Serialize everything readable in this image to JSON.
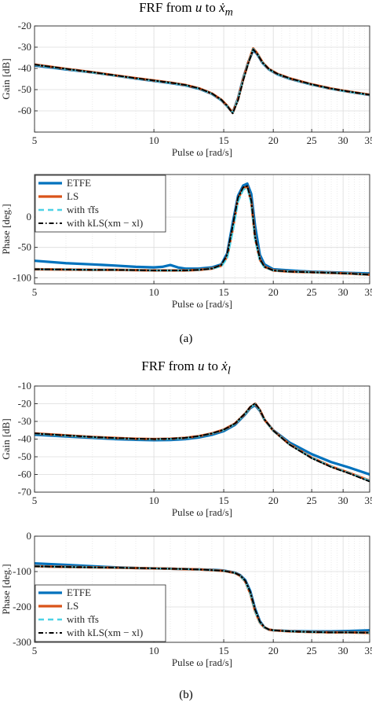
{
  "figure": {
    "caption_a": "(a)",
    "caption_b": "(b)"
  },
  "colors": {
    "ETFE": "#0072bd",
    "LS": "#d95319",
    "with_tau": "#4dd2e6",
    "with_kls": "#000000",
    "grid": "#dcdcdc",
    "axis": "#262626"
  },
  "chart_data": [
    {
      "id": "a-gain",
      "type": "line",
      "title": "FRF from u to ẋm",
      "xlabel": "Pulse ω [rad/s]",
      "ylabel": "Gain [dB]",
      "xscale": "log",
      "xlim": [
        5,
        35
      ],
      "ylim": [
        -70,
        -20
      ],
      "xticks": [
        5,
        10,
        15,
        20,
        25,
        30,
        35
      ],
      "yticks": [
        -20,
        -30,
        -40,
        -50,
        -60,
        -70
      ],
      "ytick_labels": [
        "-20",
        "-30",
        "-40",
        "-50",
        "-60",
        ""
      ],
      "grid": true,
      "series": [
        {
          "name": "ETFE",
          "style": "solid-thick",
          "x": [
            5,
            6,
            7,
            8,
            9,
            10,
            11,
            12,
            13,
            14,
            14.8,
            15.3,
            15.8,
            16.3,
            16.8,
            17.3,
            17.8,
            18.2,
            18.8,
            19.5,
            20.5,
            22,
            25,
            28,
            31,
            35
          ],
          "y": [
            -38.6,
            -40.5,
            -41.9,
            -43.4,
            -44.8,
            -45.9,
            -46.9,
            -48,
            -49.6,
            -52,
            -55,
            -57.8,
            -60.8,
            -54,
            -44.5,
            -37,
            -31.5,
            -33.2,
            -37.5,
            -40.5,
            -42.8,
            -44.9,
            -47.6,
            -49.6,
            -51,
            -52.5
          ]
        },
        {
          "name": "LS",
          "style": "solid-thick",
          "x": [
            5,
            6,
            7,
            8,
            9,
            10,
            11,
            12,
            13,
            14,
            14.8,
            15.3,
            15.8,
            16.3,
            16.8,
            17.3,
            17.8,
            18.2,
            18.8,
            19.5,
            20.5,
            22,
            25,
            28,
            31,
            35
          ],
          "y": [
            -38.2,
            -40.2,
            -41.8,
            -43.3,
            -44.6,
            -45.7,
            -46.7,
            -47.8,
            -49.4,
            -51.8,
            -54.8,
            -57.6,
            -60.9,
            -54.5,
            -45,
            -37.2,
            -30.6,
            -32.8,
            -37.2,
            -40.3,
            -42.6,
            -44.7,
            -47.5,
            -49.5,
            -50.9,
            -52.4
          ]
        },
        {
          "name": "with τ̂fs",
          "style": "dashed",
          "x": [
            5,
            6,
            7,
            8,
            9,
            10,
            11,
            12,
            13,
            14,
            14.8,
            15.3,
            15.8,
            16.3,
            16.8,
            17.3,
            17.8,
            18.2,
            18.8,
            19.5,
            20.5,
            22,
            25,
            28,
            31,
            35
          ],
          "y": [
            -38.3,
            -40.3,
            -41.9,
            -43.4,
            -44.7,
            -45.8,
            -46.8,
            -47.9,
            -49.5,
            -51.9,
            -54.9,
            -57.7,
            -61,
            -54.6,
            -45.2,
            -37.4,
            -30.8,
            -32.9,
            -37.3,
            -40.4,
            -42.7,
            -44.8,
            -47.6,
            -49.6,
            -51,
            -52.5
          ]
        },
        {
          "name": "with kLS(xm − xl)",
          "style": "dashdot",
          "x": [
            5,
            6,
            7,
            8,
            9,
            10,
            11,
            12,
            13,
            14,
            14.8,
            15.3,
            15.8,
            16.3,
            16.8,
            17.3,
            17.8,
            18.2,
            18.8,
            19.5,
            20.5,
            22,
            25,
            28,
            31,
            35
          ],
          "y": [
            -38.2,
            -40.2,
            -41.8,
            -43.3,
            -44.6,
            -45.7,
            -46.7,
            -47.8,
            -49.4,
            -51.8,
            -54.8,
            -57.6,
            -61.2,
            -55,
            -45.6,
            -37.6,
            -31,
            -33,
            -37.3,
            -40.3,
            -42.6,
            -44.7,
            -47.5,
            -49.5,
            -50.9,
            -52.4
          ]
        }
      ]
    },
    {
      "id": "a-phase",
      "type": "line",
      "title": "",
      "xlabel": "Pulse ω [rad/s]",
      "ylabel": "Phase [deg.]",
      "xscale": "log",
      "xlim": [
        5,
        35
      ],
      "ylim": [
        -110,
        70
      ],
      "xticks": [
        5,
        10,
        15,
        20,
        25,
        30,
        35
      ],
      "yticks": [
        0,
        -50,
        -100
      ],
      "ytick_labels": [
        "0",
        "-50",
        "-100"
      ],
      "grid": true,
      "legend": "top-left",
      "series": [
        {
          "name": "ETFE",
          "style": "solid-thick",
          "x": [
            5,
            6,
            7,
            8,
            9,
            10,
            10.5,
            11,
            11.5,
            12,
            13,
            14,
            14.8,
            15.3,
            15.8,
            16.3,
            16.8,
            17.2,
            17.6,
            18,
            18.5,
            19,
            20,
            22,
            25,
            28,
            31,
            35
          ],
          "y": [
            -72,
            -76,
            -78,
            -80,
            -82,
            -83,
            -82,
            -79,
            -83,
            -85,
            -85,
            -83,
            -78,
            -60,
            -10,
            35,
            52,
            55,
            38,
            -15,
            -62,
            -78,
            -86,
            -88,
            -90,
            -91,
            -92,
            -93
          ]
        },
        {
          "name": "LS",
          "style": "solid-thick",
          "x": [
            5,
            6,
            7,
            8,
            9,
            10,
            11,
            12,
            13,
            14,
            14.8,
            15.3,
            15.8,
            16.3,
            16.8,
            17.2,
            17.6,
            18,
            18.5,
            19,
            20,
            22,
            25,
            28,
            31,
            35
          ],
          "y": [
            -86,
            -86.5,
            -87,
            -87,
            -87.5,
            -88,
            -88,
            -88,
            -87,
            -85,
            -80,
            -65,
            -20,
            30,
            48,
            50,
            25,
            -35,
            -70,
            -82,
            -88,
            -90,
            -91,
            -92,
            -93,
            -95
          ]
        },
        {
          "name": "with τ̂fs",
          "style": "dashed",
          "x": [
            5,
            6,
            7,
            8,
            9,
            10,
            11,
            12,
            13,
            14,
            14.8,
            15.3,
            15.8,
            16.3,
            16.8,
            17.2,
            17.6,
            18,
            18.5,
            19,
            20,
            22,
            25,
            28,
            31,
            35
          ],
          "y": [
            -86,
            -86.5,
            -87,
            -87,
            -87.5,
            -88,
            -88,
            -88,
            -87,
            -85,
            -81,
            -68,
            -25,
            25,
            45,
            48,
            22,
            -38,
            -72,
            -83,
            -88,
            -90,
            -91,
            -92,
            -93,
            -95
          ]
        },
        {
          "name": "with kLS(xm − xl)",
          "style": "dashdot",
          "x": [
            5,
            6,
            7,
            8,
            9,
            10,
            11,
            12,
            13,
            14,
            14.8,
            15.3,
            15.8,
            16.3,
            16.8,
            17.2,
            17.6,
            18,
            18.5,
            19,
            20,
            22,
            25,
            28,
            31,
            35
          ],
          "y": [
            -86,
            -86.5,
            -87,
            -87,
            -87.5,
            -88,
            -88,
            -88,
            -87,
            -85,
            -79,
            -62,
            -15,
            32,
            49,
            51,
            27,
            -33,
            -69,
            -82,
            -88,
            -90,
            -91,
            -92,
            -93,
            -95
          ]
        }
      ]
    },
    {
      "id": "b-gain",
      "type": "line",
      "title": "FRF from u to ẋl",
      "xlabel": "Pulse ω [rad/s]",
      "ylabel": "Gain [dB]",
      "xscale": "log",
      "xlim": [
        5,
        35
      ],
      "ylim": [
        -70,
        -10
      ],
      "xticks": [
        5,
        10,
        15,
        20,
        25,
        30,
        35
      ],
      "yticks": [
        -10,
        -20,
        -30,
        -40,
        -50,
        -60,
        -70
      ],
      "ytick_labels": [
        "-10",
        "-20",
        "-30",
        "-40",
        "-50",
        "-60",
        "-70"
      ],
      "grid": true,
      "series": [
        {
          "name": "ETFE",
          "style": "solid-thick",
          "x": [
            5,
            6,
            7,
            8,
            9,
            10,
            11,
            12,
            13,
            14,
            15,
            16,
            17,
            17.5,
            18,
            18.5,
            19,
            20,
            22,
            25,
            28,
            31,
            35
          ],
          "y": [
            -37.5,
            -38.5,
            -39.3,
            -40,
            -40.4,
            -40.6,
            -40.5,
            -40,
            -39,
            -37.6,
            -35.5,
            -32,
            -26,
            -22.5,
            -20.8,
            -24,
            -29,
            -35,
            -42,
            -48.5,
            -53,
            -56,
            -60
          ]
        },
        {
          "name": "LS",
          "style": "solid-thick",
          "x": [
            5,
            6,
            7,
            8,
            9,
            10,
            11,
            12,
            13,
            14,
            15,
            16,
            17,
            17.5,
            18,
            18.5,
            19,
            20,
            22,
            25,
            28,
            31,
            35
          ],
          "y": [
            -36.8,
            -37.9,
            -38.8,
            -39.4,
            -39.8,
            -40,
            -39.8,
            -39.3,
            -38.3,
            -36.8,
            -34.7,
            -31.3,
            -25.5,
            -22,
            -20,
            -23.6,
            -29,
            -35.2,
            -43,
            -50.5,
            -55.5,
            -59,
            -63.5
          ]
        },
        {
          "name": "with τ̂fs",
          "style": "dashed",
          "x": [
            5,
            6,
            7,
            8,
            9,
            10,
            11,
            12,
            13,
            14,
            15,
            16,
            17,
            17.5,
            18,
            18.5,
            19,
            20,
            22,
            25,
            28,
            31,
            35
          ],
          "y": [
            -36.9,
            -38,
            -38.9,
            -39.5,
            -39.9,
            -40.1,
            -39.9,
            -39.4,
            -38.4,
            -36.9,
            -34.8,
            -31.4,
            -25.6,
            -22.1,
            -20.1,
            -23.7,
            -29.1,
            -35.3,
            -43.1,
            -50.6,
            -55.6,
            -59.1,
            -63.6
          ]
        },
        {
          "name": "with kLS(xm − xl)",
          "style": "dashdot",
          "x": [
            5,
            6,
            7,
            8,
            9,
            10,
            11,
            12,
            13,
            14,
            15,
            16,
            17,
            17.5,
            18,
            18.5,
            19,
            20,
            22,
            25,
            28,
            31,
            35
          ],
          "y": [
            -36.8,
            -37.9,
            -38.8,
            -39.4,
            -39.8,
            -40,
            -39.8,
            -39.3,
            -38.3,
            -36.8,
            -34.7,
            -31.3,
            -25.4,
            -21.8,
            -19.8,
            -23.4,
            -28.9,
            -35.2,
            -43.2,
            -50.8,
            -55.8,
            -59.3,
            -64
          ]
        }
      ]
    },
    {
      "id": "b-phase",
      "type": "line",
      "title": "",
      "xlabel": "Pulse ω [rad/s]",
      "ylabel": "Phase [deg.]",
      "xscale": "log",
      "xlim": [
        5,
        35
      ],
      "ylim": [
        -300,
        0
      ],
      "xticks": [
        5,
        10,
        15,
        20,
        25,
        30,
        35
      ],
      "yticks": [
        0,
        -100,
        -200,
        -300
      ],
      "ytick_labels": [
        "0",
        "-100",
        "-200",
        "-300"
      ],
      "grid": true,
      "legend": "bottom-left",
      "series": [
        {
          "name": "ETFE",
          "style": "solid-thick",
          "x": [
            5,
            6,
            7,
            8,
            9,
            10,
            11,
            12,
            13,
            14,
            15,
            16,
            16.5,
            17,
            17.5,
            18,
            18.5,
            19,
            19.5,
            20,
            22,
            25,
            28,
            31,
            35
          ],
          "y": [
            -77,
            -81,
            -85,
            -88,
            -90,
            -91,
            -92,
            -93,
            -94,
            -95,
            -97,
            -103,
            -110,
            -124,
            -155,
            -205,
            -240,
            -258,
            -264,
            -266,
            -268,
            -269,
            -269,
            -268,
            -266
          ]
        },
        {
          "name": "LS",
          "style": "solid-thick",
          "x": [
            5,
            6,
            7,
            8,
            9,
            10,
            11,
            12,
            13,
            14,
            15,
            16,
            16.5,
            17,
            17.5,
            18,
            18.5,
            19,
            19.5,
            20,
            22,
            25,
            28,
            31,
            35
          ],
          "y": [
            -85,
            -87,
            -88,
            -89,
            -90,
            -91,
            -92,
            -93,
            -94,
            -96,
            -98,
            -104,
            -112,
            -128,
            -162,
            -212,
            -244,
            -258,
            -264,
            -266,
            -269,
            -271,
            -272,
            -272,
            -273
          ]
        },
        {
          "name": "with τ̂fs",
          "style": "dashed",
          "x": [
            5,
            6,
            7,
            8,
            9,
            10,
            11,
            12,
            13,
            14,
            15,
            16,
            16.5,
            17,
            17.5,
            18,
            18.5,
            19,
            19.5,
            20,
            22,
            25,
            28,
            31,
            35
          ],
          "y": [
            -85,
            -87,
            -88,
            -89,
            -90,
            -91,
            -92,
            -93,
            -94,
            -96,
            -98,
            -104,
            -112,
            -128,
            -162,
            -212,
            -244,
            -258,
            -264,
            -266,
            -269,
            -271,
            -272,
            -272,
            -273
          ]
        },
        {
          "name": "with kLS(xm − xl)",
          "style": "dashdot",
          "x": [
            5,
            6,
            7,
            8,
            9,
            10,
            11,
            12,
            13,
            14,
            15,
            16,
            16.5,
            17,
            17.5,
            18,
            18.5,
            19,
            19.5,
            20,
            22,
            25,
            28,
            31,
            35
          ],
          "y": [
            -85,
            -87,
            -88,
            -89,
            -90,
            -91,
            -92,
            -93,
            -94,
            -96,
            -98,
            -104,
            -111,
            -126,
            -158,
            -208,
            -242,
            -257,
            -264,
            -266,
            -269,
            -271,
            -272,
            -272,
            -273
          ]
        }
      ]
    }
  ]
}
